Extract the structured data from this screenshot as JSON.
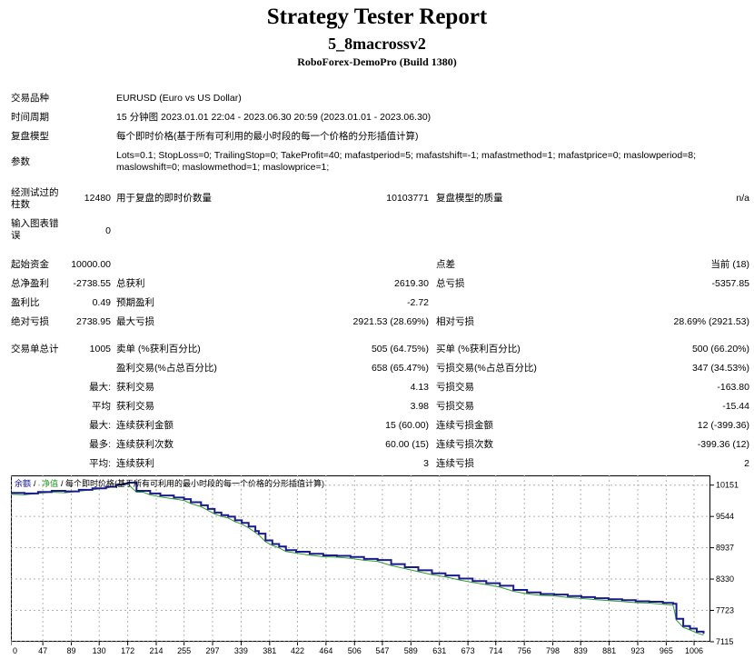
{
  "report": {
    "title": "Strategy Tester Report",
    "ea_name": "5_8macrossv2",
    "broker": "RoboForex-DemoPro (Build 1380)"
  },
  "settings": {
    "symbol_label": "交易品种",
    "symbol_value": "EURUSD (Euro vs US Dollar)",
    "period_label": "时间周期",
    "period_value": "15 分钟图 2023.01.01 22:04 - 2023.06.30 20:59 (2023.01.01 - 2023.06.30)",
    "model_label": "复盘模型",
    "model_value": "每个即时价格(基于所有可利用的最小时段的每一个价格的分形插值计算)",
    "params_label": "参数",
    "params_value": "Lots=0.1; StopLoss=0; TrailingStop=0; TakeProfit=40; mafastperiod=5; mafastshift=-1; mafastmethod=1; mafastprice=0; maslowperiod=8; maslowshift=0; maslowmethod=1; maslowprice=1;"
  },
  "bars": {
    "label": "经测试过的柱数",
    "value": "12480",
    "ticks_label": "用于复盘的即时价数量",
    "ticks_value": "10103771",
    "quality_label": "复盘模型的质量",
    "quality_value": "n/a",
    "mismatch_label": "输入图表错误",
    "mismatch_value": "0"
  },
  "results": {
    "deposit_label": "起始资金",
    "deposit_value": "10000.00",
    "spread_label": "点差",
    "spread_value": "当前 (18)",
    "net_label": "总净盈利",
    "net_value": "-2738.55",
    "gross_profit_label": "总获利",
    "gross_profit_value": "2619.30",
    "gross_loss_label": "总亏损",
    "gross_loss_value": "-5357.85",
    "pf_label": "盈利比",
    "pf_value": "0.49",
    "payoff_label": "预期盈利",
    "payoff_value": "-2.72",
    "abs_dd_label": "绝对亏损",
    "abs_dd_value": "2738.95",
    "max_dd_label": "最大亏损",
    "max_dd_value": "2921.53 (28.69%)",
    "rel_dd_label": "相对亏损",
    "rel_dd_value": "28.69% (2921.53)"
  },
  "trades": {
    "total_label": "交易单总计",
    "total_value": "1005",
    "short_label": "卖单 (%获利百分比)",
    "short_value": "505 (64.75%)",
    "long_label": "买单 (%获利百分比)",
    "long_value": "500 (66.20%)",
    "profit_trades_label": "盈利交易(%占总百分比)",
    "profit_trades_value": "658 (65.47%)",
    "loss_trades_label": "亏损交易(%占总百分比)",
    "loss_trades_value": "347 (34.53%)",
    "largest_prefix": "最大:",
    "largest_profit_label": "获利交易",
    "largest_profit_value": "4.13",
    "largest_loss_label": "亏损交易",
    "largest_loss_value": "-163.80",
    "average_prefix": "平均",
    "avg_profit_label": "获利交易",
    "avg_profit_value": "3.98",
    "avg_loss_label": "亏损交易",
    "avg_loss_value": "-15.44",
    "max_cons_prefix": "最大:",
    "max_cons_wins_label": "连续获利金额",
    "max_cons_wins_value": "15 (60.00)",
    "max_cons_losses_label": "连续亏损金额",
    "max_cons_losses_value": "12 (-399.36)",
    "max_cons2_prefix": "最多:",
    "max_cons_profit_label": "连续获利次数",
    "max_cons_profit_value": "60.00 (15)",
    "max_cons_loss_label": "连续亏损次数",
    "max_cons_loss_value": "-399.36 (12)",
    "avg_cons_prefix": "平均:",
    "avg_cons_wins_label": "连续获利",
    "avg_cons_wins_value": "3",
    "avg_cons_losses_label": "连续亏损",
    "avg_cons_losses_value": "2"
  },
  "chart_legend": {
    "balance": "余额",
    "sep": "/",
    "equity": "净值",
    "model": "/ 每个即时价格(基于所有可利用的最小时段的每一个价格的分形插值计算)"
  },
  "colors": {
    "balance": "#1a1a8c",
    "equity": "#2e9e2e",
    "grid": "#b0b0b0"
  },
  "chart_data": {
    "type": "line",
    "title": "",
    "xlabel": "",
    "ylabel": "",
    "x_ticks": [
      0,
      47,
      89,
      130,
      172,
      214,
      255,
      297,
      339,
      381,
      422,
      464,
      506,
      547,
      589,
      631,
      673,
      714,
      756,
      798,
      839,
      881,
      923,
      965,
      1006
    ],
    "y_ticks": [
      7115,
      7723,
      8330,
      8937,
      9544,
      10151
    ],
    "xlim": [
      0,
      1030
    ],
    "ylim": [
      7115,
      10340
    ],
    "grid": true,
    "series": [
      {
        "x": [
          0,
          20,
          40,
          60,
          80,
          100,
          120,
          140,
          155,
          165,
          172,
          185,
          195,
          205,
          220,
          240,
          255,
          265,
          280,
          290,
          300,
          310,
          320,
          330,
          340,
          350,
          360,
          365,
          375,
          385,
          395,
          405,
          420,
          440,
          460,
          480,
          500,
          520,
          540,
          560,
          580,
          600,
          620,
          640,
          660,
          680,
          700,
          720,
          740,
          760,
          780,
          800,
          820,
          840,
          860,
          880,
          900,
          920,
          940,
          960,
          975,
          980,
          990,
          1000,
          1010,
          1020
        ],
        "y": [
          10000,
          9990,
          10020,
          10040,
          10030,
          10060,
          10090,
          10120,
          10160,
          10180,
          10200,
          10040,
          10040,
          9990,
          9950,
          9910,
          9880,
          9820,
          9760,
          9690,
          9620,
          9570,
          9540,
          9470,
          9420,
          9350,
          9260,
          9210,
          9080,
          9010,
          8960,
          8890,
          8860,
          8820,
          8790,
          8780,
          8760,
          8720,
          8700,
          8620,
          8560,
          8500,
          8440,
          8400,
          8340,
          8290,
          8250,
          8200,
          8120,
          8070,
          8040,
          8030,
          8000,
          7980,
          7960,
          7940,
          7920,
          7900,
          7890,
          7870,
          7850,
          7560,
          7420,
          7370,
          7310,
          7270
        ]
      }
    ]
  }
}
